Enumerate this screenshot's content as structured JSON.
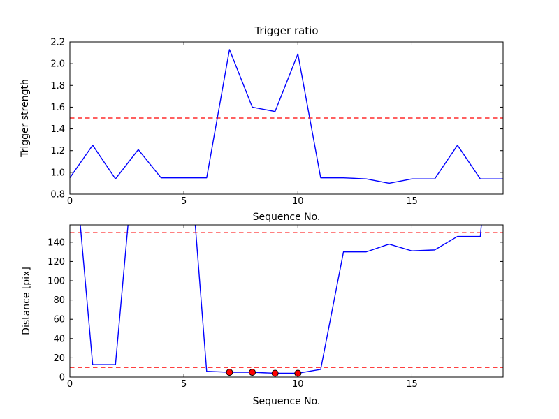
{
  "figure": {
    "background": "#ffffff",
    "spine_color": "#000000",
    "text_color": "#000000"
  },
  "chart_data": [
    {
      "type": "line",
      "title": "Trigger ratio",
      "xlabel": "Sequence No.",
      "ylabel": "Trigger strength",
      "grid": false,
      "legend": null,
      "xlim": [
        0,
        19
      ],
      "ylim": [
        0.8,
        2.2
      ],
      "xticks": [
        0,
        5,
        10,
        15
      ],
      "xtick_labels": [
        "0",
        "5",
        "10",
        "15"
      ],
      "yticks": [
        0.8,
        1.0,
        1.2,
        1.4,
        1.6,
        1.8,
        2.0,
        2.2
      ],
      "ytick_labels": [
        "0.8",
        "1.0",
        "1.2",
        "1.4",
        "1.6",
        "1.8",
        "2.0",
        "2.2"
      ],
      "x": [
        0,
        1,
        2,
        3,
        4,
        5,
        6,
        7,
        8,
        9,
        10,
        11,
        12,
        13,
        14,
        15,
        16,
        17,
        18,
        19
      ],
      "series": [
        {
          "name": "trigger-strength",
          "color": "#0000ff",
          "values": [
            0.95,
            1.25,
            0.94,
            1.21,
            0.95,
            0.95,
            0.95,
            2.13,
            1.6,
            1.56,
            2.09,
            0.95,
            0.95,
            0.94,
            0.9,
            0.94,
            0.94,
            1.25,
            0.94,
            0.94
          ]
        }
      ],
      "threshold_lines": [
        {
          "y": 1.5,
          "color": "#ff0000",
          "style": "dashed"
        }
      ],
      "markers": null
    },
    {
      "type": "line",
      "title": "",
      "xlabel": "Sequence No.",
      "ylabel": "Distance [pix]",
      "grid": false,
      "legend": null,
      "xlim": [
        0,
        19
      ],
      "ylim": [
        0,
        158
      ],
      "xticks": [
        0,
        5,
        10,
        15
      ],
      "xtick_labels": [
        "0",
        "5",
        "10",
        "15"
      ],
      "yticks": [
        0,
        20,
        40,
        60,
        80,
        100,
        120,
        140
      ],
      "ytick_labels": [
        "0",
        "20",
        "40",
        "60",
        "80",
        "100",
        "120",
        "140"
      ],
      "x": [
        0,
        1,
        2,
        3,
        4,
        5,
        6,
        7,
        8,
        9,
        10,
        11,
        12,
        13,
        14,
        15,
        16,
        17,
        18,
        19
      ],
      "series": [
        {
          "name": "distance",
          "color": "#0000ff",
          "values": [
            280,
            13,
            13,
            277,
            350,
            310,
            6,
            5,
            5,
            4,
            4,
            8,
            130,
            130,
            138,
            131,
            132,
            146,
            146,
            400
          ]
        }
      ],
      "threshold_lines": [
        {
          "y": 150,
          "color": "#ff0000",
          "style": "dashed"
        },
        {
          "y": 10,
          "color": "#ff0000",
          "style": "dashed"
        }
      ],
      "markers": {
        "shape": "circle",
        "fill": "#ff0000",
        "edge": "#000000",
        "points": [
          [
            7,
            5
          ],
          [
            8,
            5
          ],
          [
            9,
            4
          ],
          [
            10,
            4
          ]
        ]
      }
    }
  ]
}
